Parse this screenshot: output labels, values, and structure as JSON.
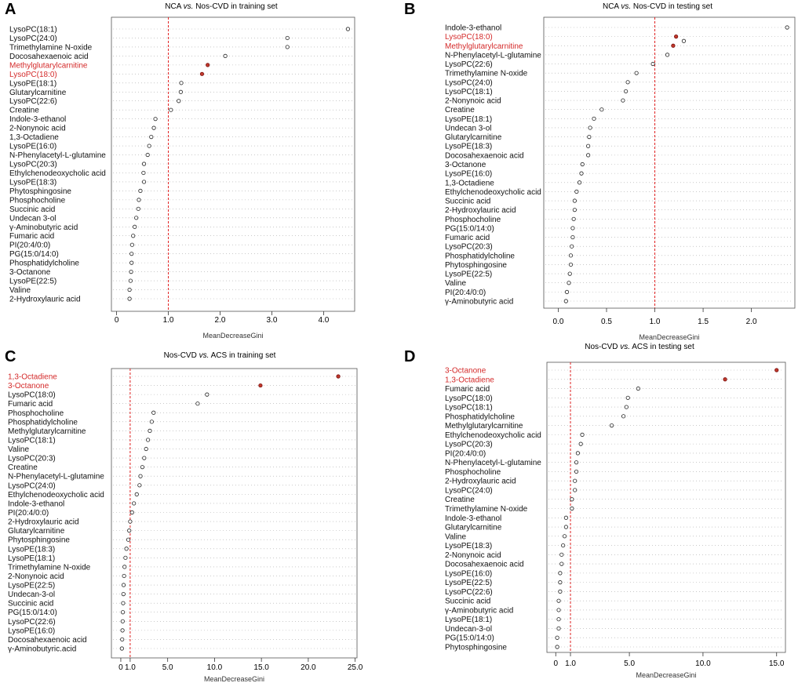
{
  "chart_data": [
    {
      "type": "scatter",
      "panel": "A",
      "title": "NCA vs. Nos-CVD in training set",
      "xlabel": "MeanDecreaseGini",
      "xlim": [
        -0.1,
        4.6
      ],
      "xticks": [
        0,
        1.0,
        2.0,
        3.0,
        4.0
      ],
      "xtick_labels": [
        "0",
        "1.0",
        "2.0",
        "3.0",
        "4.0"
      ],
      "threshold": 1.0,
      "categories": [
        "LysoPC(18:1)",
        "LysoPC(24:0)",
        "Trimethylamine N-oxide",
        "Docosahexaenoic acid",
        "Methylglutarylcarnitine",
        "LysoPC(18:0)",
        "LysoPE(18:1)",
        "Glutarylcarnitine",
        "LysoPC(22:6)",
        "Creatine",
        "Indole-3-ethanol",
        "2-Nonynoic acid",
        "1,3-Octadiene",
        "LysoPE(16:0)",
        "N-Phenylacetyl-L-glutamine",
        "LysoPC(20:3)",
        "Ethylchenodeoxycholic acid",
        "LysoPE(18:3)",
        "Phytosphingosine",
        "Phosphocholine",
        "Succinic acid",
        "Undecan 3-ol",
        "γ-Aminobutyric acid",
        "Fumaric acid",
        "PI(20:4/0:0)",
        "PG(15:0/14:0)",
        "Phosphatidylcholine",
        "3-Octanone",
        "LysoPE(22:5)",
        "Valine",
        "2-Hydroxylauric acid"
      ],
      "values": [
        4.47,
        3.3,
        3.3,
        2.1,
        1.76,
        1.65,
        1.25,
        1.24,
        1.2,
        1.05,
        0.75,
        0.72,
        0.67,
        0.63,
        0.6,
        0.53,
        0.52,
        0.53,
        0.46,
        0.43,
        0.42,
        0.38,
        0.35,
        0.32,
        0.3,
        0.29,
        0.29,
        0.28,
        0.27,
        0.25,
        0.25
      ],
      "highlighted": [
        "Methylglutarylcarnitine",
        "LysoPC(18:0)"
      ]
    },
    {
      "type": "scatter",
      "panel": "B",
      "title": "NCA vs. Nos-CVD in testing set",
      "xlabel": "MeanDecreaseGini",
      "xlim": [
        -0.15,
        2.45
      ],
      "xticks": [
        0,
        0.5,
        1.0,
        1.5,
        2.0
      ],
      "xtick_labels": [
        "0.0",
        "0.5",
        "1.0",
        "1.5",
        "2.0"
      ],
      "threshold": 1.0,
      "categories": [
        "Indole-3-ethanol",
        "LysoPC(18:0)",
        "Methylglutarylcarnitine",
        "N-Phenylacetyl-L-glutamine",
        "LysoPC(22:6)",
        "Trimethylamine N-oxide",
        "LysoPC(24:0)",
        "LysoPC(18:1)",
        "2-Nonynoic acid",
        "Creatine",
        "LysoPE(18:1)",
        "Undecan 3-ol",
        "Glutarylcarnitine",
        "LysoPE(18:3)",
        "Docosahexaenoic acid",
        "3-Octanone",
        "LysoPE(16:0)",
        "1,3-Octadiene",
        "Ethylchenodeoxycholic acid",
        "Succinic acid",
        "2-Hydroxylauric acid",
        "Phosphocholine",
        "PG(15:0/14:0)",
        "Fumaric acid",
        "LysoPC(20:3)",
        "Phosphatidylcholine",
        "Phytosphingosine",
        "LysoPE(22:5)",
        "Valine",
        "PI(20:4/0:0)",
        "γ-Aminobutyric acid"
      ],
      "values": [
        2.37,
        1.22,
        1.19,
        1.13,
        0.98,
        0.81,
        0.72,
        0.7,
        0.67,
        0.45,
        0.37,
        0.33,
        0.32,
        0.31,
        0.31,
        0.25,
        0.24,
        0.22,
        0.19,
        0.17,
        0.17,
        0.16,
        0.15,
        0.15,
        0.14,
        0.13,
        0.13,
        0.12,
        0.11,
        0.09,
        0.08
      ],
      "outline_only": [
        1.3
      ],
      "highlighted": [
        "LysoPC(18:0)",
        "Methylglutarylcarnitine"
      ]
    },
    {
      "type": "scatter",
      "panel": "C",
      "title": "Nos-CVD vs. ACS in training set",
      "xlabel": "MeanDecreaseGini",
      "xlim": [
        -1.0,
        25.2
      ],
      "xticks": [
        0,
        1.0,
        5.0,
        10.0,
        15.0,
        20.0,
        25.0
      ],
      "xtick_labels": [
        "0",
        "1.0",
        "5.0",
        "10.0",
        "15.0",
        "20.0",
        "25.0"
      ],
      "threshold": 1.0,
      "categories": [
        "1,3-Octadiene",
        "3-Octanone",
        "LysoPC(18:0)",
        "Fumaric acid",
        "Phosphocholine",
        "Phosphatidylcholine",
        "Methylglutarylcarnitine",
        "LysoPC(18:1)",
        "Valine",
        "LysoPC(20:3)",
        "Creatine",
        "N-Phenylacetyl-L-glutamine",
        "LysoPC(24:0)",
        "Ethylchenodeoxycholic acid",
        "Indole-3-ethanol",
        "PI(20:4/0:0)",
        "2-Hydroxylauric acid",
        "Glutarylcarnitine",
        "Phytosphingosine",
        "LysoPE(18:3)",
        "LysoPE(18:1)",
        "Trimethylamine N-oxide",
        "2-Nonynoic acid",
        "LysoPE(22:5)",
        "Undecan-3-ol",
        "Succinic acid",
        "PG(15:0/14:0)",
        "LysoPC(22:6)",
        "LysoPE(16:0)",
        "Docosahexaenoic acid",
        "γ-Aminobutyric.acid"
      ],
      "values": [
        23.2,
        14.9,
        9.2,
        8.2,
        3.5,
        3.3,
        3.1,
        2.9,
        2.7,
        2.5,
        2.3,
        2.1,
        2.0,
        1.7,
        1.4,
        1.2,
        1.0,
        0.9,
        0.8,
        0.6,
        0.5,
        0.4,
        0.35,
        0.3,
        0.28,
        0.25,
        0.22,
        0.2,
        0.18,
        0.15,
        0.12
      ],
      "highlighted": [
        "1,3-Octadiene",
        "3-Octanone"
      ]
    },
    {
      "type": "scatter",
      "panel": "D",
      "title": "Nos-CVD vs. ACS in testing set",
      "xlabel": "MeanDecreaseGini",
      "xlim": [
        -0.6,
        15.6
      ],
      "xticks": [
        0,
        1.0,
        5.0,
        10.0,
        15.0
      ],
      "xtick_labels": [
        "0",
        "1.0",
        "5.0",
        "10.0",
        "15.0"
      ],
      "threshold": 1.0,
      "categories": [
        "3-Octanone",
        "1,3-Octadiene",
        "Fumaric acid",
        "LysoPC(18:0)",
        "LysoPC(18:1)",
        "Phosphatidylcholine",
        "Methylglutarylcarnitine",
        "Ethylchenodeoxycholic acid",
        "LysoPC(20:3)",
        "PI(20:4/0:0)",
        "N-Phenylacetyl-L-glutamine",
        "Phosphocholine",
        "2-Hydroxylauric acid",
        "LysoPC(24:0)",
        "Creatine",
        "Trimethylamine N-oxide",
        "Indole-3-ethanol",
        "Glutarylcarnitine",
        "Valine",
        "LysoPE(18:3)",
        "2-Nonynoic acid",
        "Docosahexaenoic acid",
        "LysoPE(16:0)",
        "LysoPE(22:5)",
        "LysoPC(22:6)",
        "Succinic acid",
        "γ-Aminobutyric acid",
        "LysoPE(18:1)",
        "Undecan-3-ol",
        "PG(15:0/14:0)",
        "Phytosphingosine"
      ],
      "values": [
        15.0,
        11.5,
        5.6,
        4.9,
        4.8,
        4.6,
        3.8,
        1.8,
        1.7,
        1.5,
        1.4,
        1.4,
        1.3,
        1.3,
        1.1,
        1.1,
        0.7,
        0.7,
        0.6,
        0.5,
        0.4,
        0.4,
        0.3,
        0.3,
        0.3,
        0.2,
        0.2,
        0.2,
        0.2,
        0.1,
        0.1
      ],
      "highlighted": [
        "3-Octanone",
        "1,3-Octadiene"
      ]
    }
  ]
}
